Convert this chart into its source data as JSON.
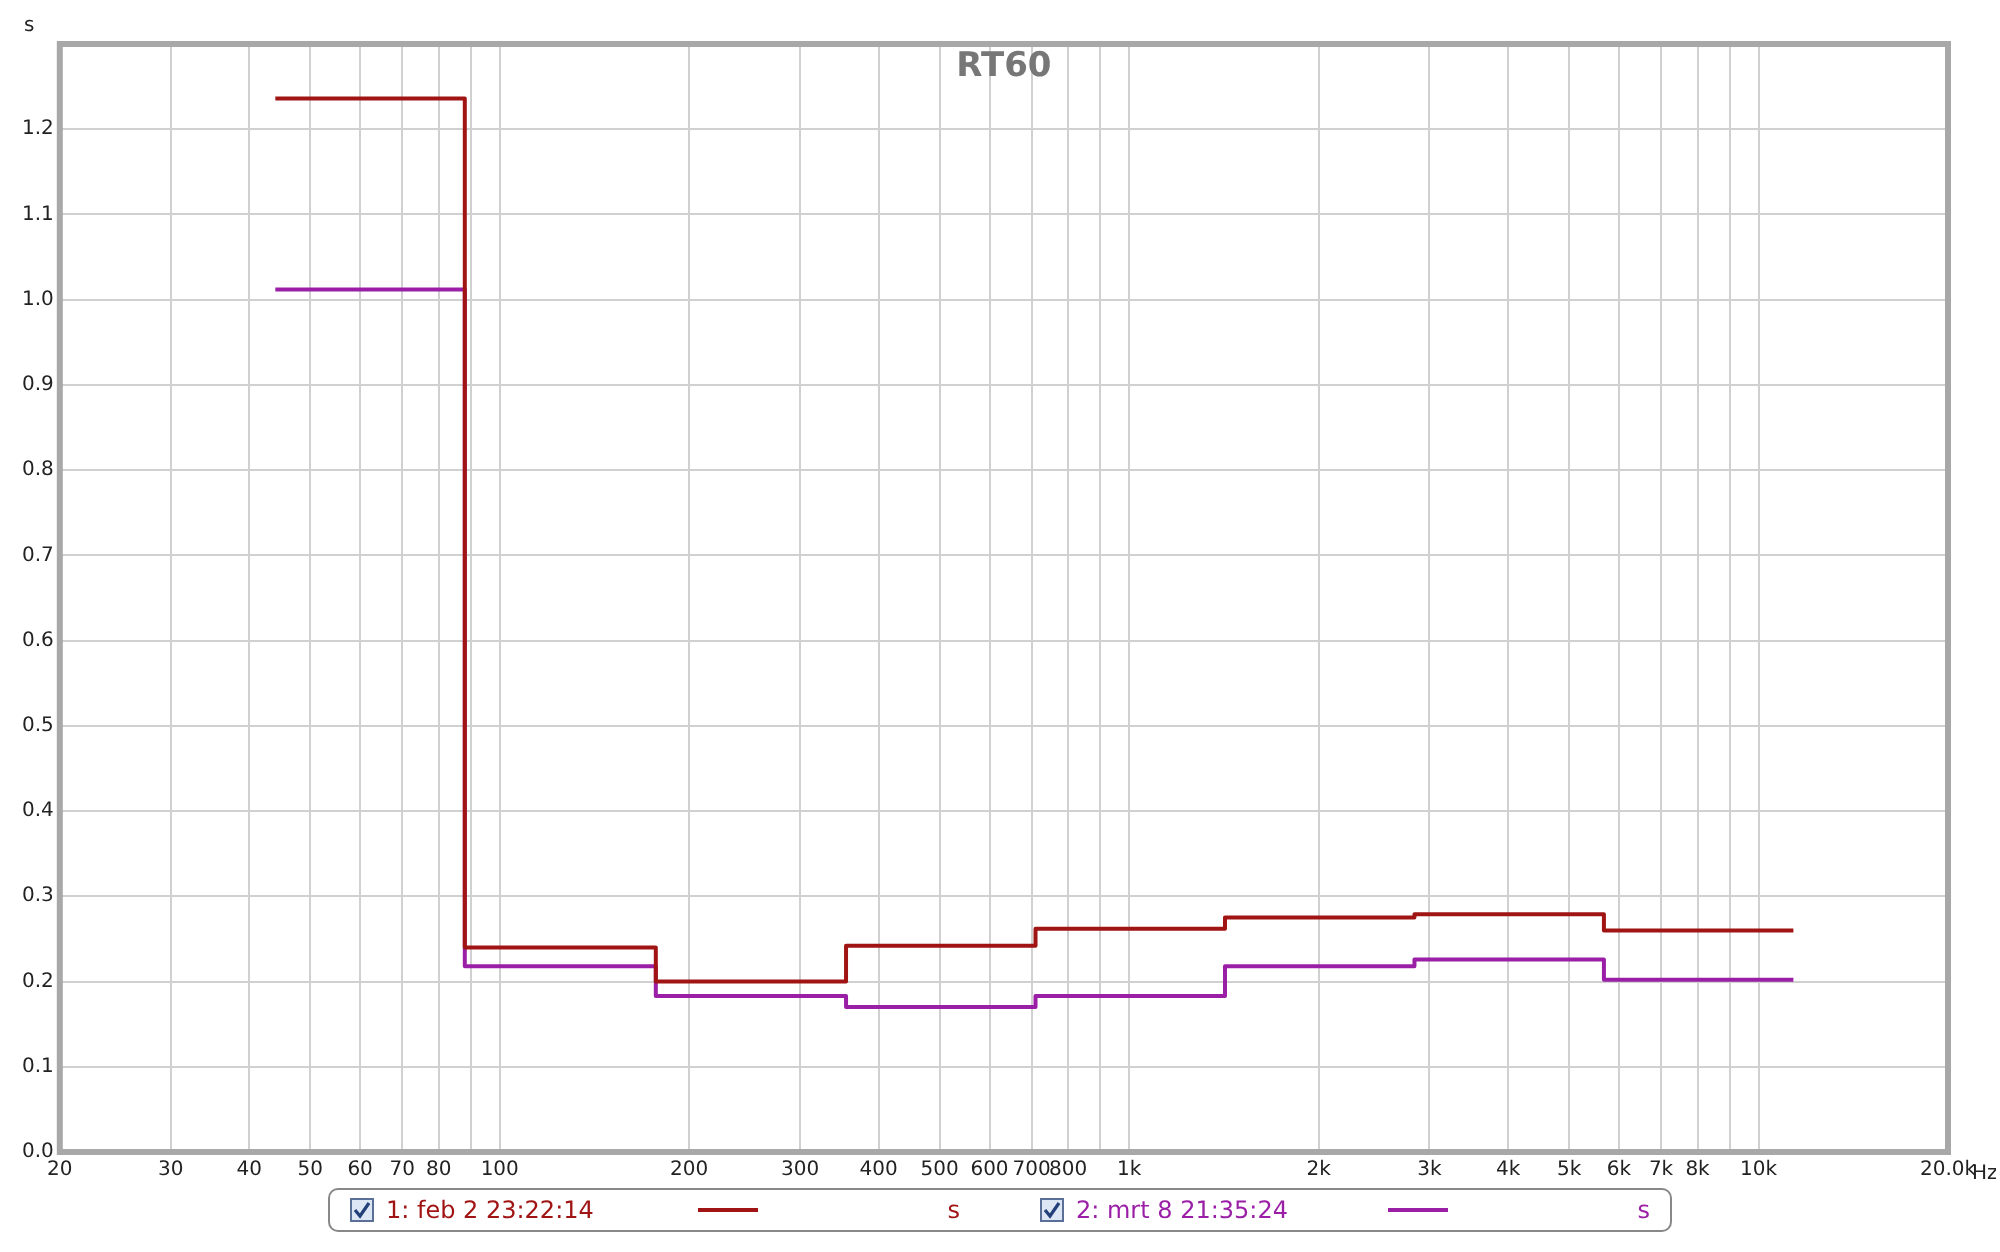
{
  "chart_data": {
    "type": "step",
    "title": "RT60",
    "xlabel": "Hz",
    "ylabel": "s",
    "x": [
      44,
      88,
      177,
      355,
      710,
      1420,
      2840,
      5680,
      11360
    ],
    "series": [
      {
        "name": "1: feb 2 23:22:14",
        "color": "#a01414",
        "values": [
          1.236,
          0.24,
          0.2,
          0.242,
          0.262,
          0.275,
          0.279,
          0.26,
          0.26
        ]
      },
      {
        "name": "2: mrt 8 21:35:24",
        "color": "#9a1fa6",
        "values": [
          1.012,
          0.218,
          0.183,
          0.17,
          0.183,
          0.218,
          0.226,
          0.202,
          0.202
        ]
      }
    ],
    "log": "x",
    "xlim": [
      20,
      20000
    ],
    "ylim": [
      0,
      1.3
    ],
    "xticks": [
      20,
      30,
      40,
      50,
      60,
      70,
      80,
      {
        "value": 90,
        "label": null
      },
      100,
      200,
      300,
      400,
      500,
      600,
      700,
      800,
      {
        "value": 900,
        "label": null
      },
      {
        "value": 1000,
        "label": "1k"
      },
      {
        "value": 2000,
        "label": "2k"
      },
      {
        "value": 3000,
        "label": "3k"
      },
      {
        "value": 4000,
        "label": "4k"
      },
      {
        "value": 5000,
        "label": "5k"
      },
      {
        "value": 6000,
        "label": "6k"
      },
      {
        "value": 7000,
        "label": "7k"
      },
      {
        "value": 8000,
        "label": "8k"
      },
      {
        "value": 9000,
        "label": null
      },
      {
        "value": 10000,
        "label": "10k"
      },
      {
        "value": 20000,
        "label": "20.0k"
      }
    ],
    "yticks": [
      {
        "value": 0,
        "label": "0.0"
      },
      0.1,
      0.2,
      0.3,
      0.4,
      0.5,
      0.6,
      0.7,
      0.8,
      0.9,
      {
        "value": 1,
        "label": "1.0"
      },
      1.1,
      1.2
    ],
    "grid": true,
    "legend": "bottom",
    "line_style": "solid",
    "marker": "none"
  }
}
